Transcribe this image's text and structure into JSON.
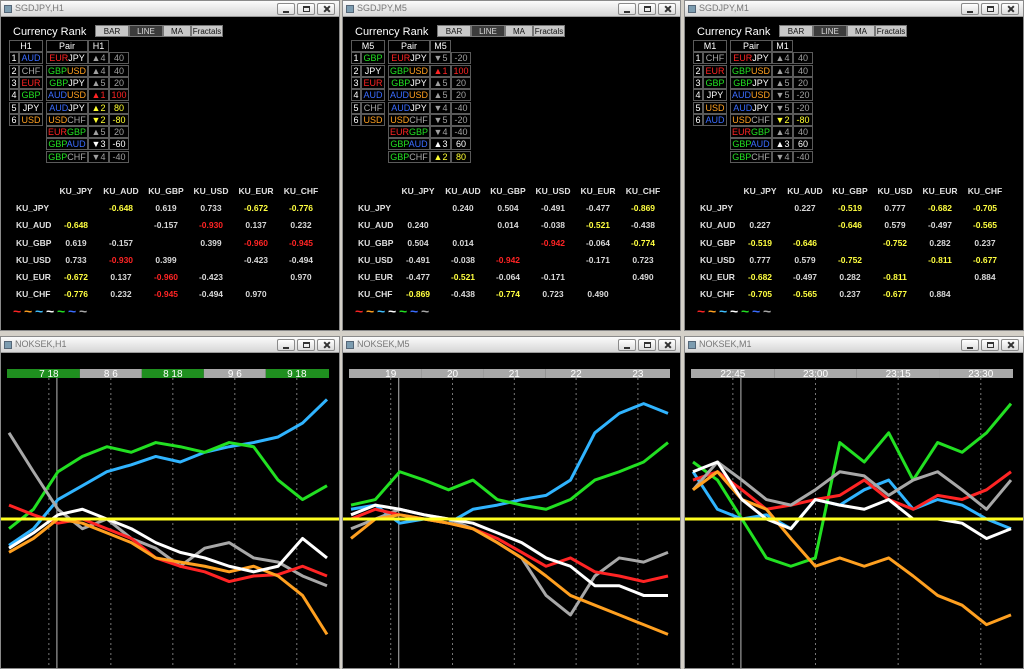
{
  "currency_colors": {
    "JPY": "#ffffff",
    "AUD": "#3a6cff",
    "GBP": "#22e022",
    "USD": "#ffa020",
    "EUR": "#ff2424",
    "CHF": "#a8a8a8"
  },
  "rank_colors": {
    "1": "#ff2424",
    "2": "#ffff30",
    "3": "#ffffff",
    "4": "#a0a0a0",
    "5": "#a0a0a0"
  },
  "matrix_colors": {
    "strong": "#ff2424",
    "medium": "#ffff40",
    "weak": "#d8d8d8"
  },
  "rank_windows": [
    {
      "title": "SGDJPY,H1",
      "heading": "Currency Rank",
      "buttons": [
        "BAR",
        "LINE",
        "MA",
        "Fractals"
      ],
      "active_button": 1,
      "header": [
        "H1",
        "Pair",
        "H1"
      ],
      "ranking": [
        {
          "n": "1",
          "cur": "AUD"
        },
        {
          "n": "2",
          "cur": "CHF"
        },
        {
          "n": "3",
          "cur": "EUR"
        },
        {
          "n": "4",
          "cur": "GBP"
        },
        {
          "n": "5",
          "cur": "JPY"
        },
        {
          "n": "6",
          "cur": "USD"
        }
      ],
      "pairs": [
        {
          "base": "EUR",
          "quote": "JPY",
          "rank": "▲4",
          "value": 40
        },
        {
          "base": "GBP",
          "quote": "USD",
          "rank": "▲4",
          "value": 40
        },
        {
          "base": "GBP",
          "quote": "JPY",
          "rank": "▲5",
          "value": 20
        },
        {
          "base": "AUD",
          "quote": "USD",
          "rank": "▲1",
          "value": 100
        },
        {
          "base": "AUD",
          "quote": "JPY",
          "rank": "▲2",
          "value": 80
        },
        {
          "base": "USD",
          "quote": "CHF",
          "rank": "▼2",
          "value": -80
        },
        {
          "base": "EUR",
          "quote": "GBP",
          "rank": "▲5",
          "value": 20
        },
        {
          "base": "GBP",
          "quote": "AUD",
          "rank": "▼3",
          "value": -60
        },
        {
          "base": "GBP",
          "quote": "CHF",
          "rank": "▼4",
          "value": -40
        }
      ],
      "matrix": {
        "columns": [
          "KU_JPY",
          "KU_AUD",
          "KU_GBP",
          "KU_USD",
          "KU_EUR",
          "KU_CHF"
        ],
        "rows": [
          {
            "label": "KU_JPY",
            "cells": [
              null,
              "-0.648",
              "0.619",
              "0.733",
              "-0.672",
              "-0.776"
            ]
          },
          {
            "label": "KU_AUD",
            "cells": [
              "-0.648",
              null,
              "-0.157",
              "-0.930",
              "0.137",
              "0.232"
            ]
          },
          {
            "label": "KU_GBP",
            "cells": [
              "0.619",
              "-0.157",
              null,
              "0.399",
              "-0.960",
              "-0.945"
            ]
          },
          {
            "label": "KU_USD",
            "cells": [
              "0.733",
              "-0.930",
              "0.399",
              null,
              "-0.423",
              "-0.494"
            ]
          },
          {
            "label": "KU_EUR",
            "cells": [
              "-0.672",
              "0.137",
              "-0.960",
              "-0.423",
              null,
              "0.970"
            ]
          },
          {
            "label": "KU_CHF",
            "cells": [
              "-0.776",
              "0.232",
              "-0.945",
              "-0.494",
              "0.970",
              null
            ]
          }
        ]
      },
      "legend": {
        "symbols": [
          "~",
          "~",
          "~",
          "~",
          "~",
          "~",
          "~"
        ],
        "colors": [
          "#ff2424",
          "#ffa020",
          "#40c0ff",
          "#ffffff",
          "#22e022",
          "#3a6cff",
          "#a8a8a8"
        ]
      }
    },
    {
      "title": "SGDJPY,M5",
      "heading": "Currency Rank",
      "buttons": [
        "BAR",
        "LINE",
        "MA",
        "Fractals"
      ],
      "active_button": 1,
      "header": [
        "M5",
        "Pair",
        "M5"
      ],
      "ranking": [
        {
          "n": "1",
          "cur": "GBP"
        },
        {
          "n": "2",
          "cur": "JPY"
        },
        {
          "n": "3",
          "cur": "EUR"
        },
        {
          "n": "4",
          "cur": "AUD"
        },
        {
          "n": "5",
          "cur": "CHF"
        },
        {
          "n": "6",
          "cur": "USD"
        }
      ],
      "pairs": [
        {
          "base": "EUR",
          "quote": "JPY",
          "rank": "▼5",
          "value": -20
        },
        {
          "base": "GBP",
          "quote": "USD",
          "rank": "▲1",
          "value": 100
        },
        {
          "base": "GBP",
          "quote": "JPY",
          "rank": "▲5",
          "value": 20
        },
        {
          "base": "AUD",
          "quote": "USD",
          "rank": "▲5",
          "value": 20
        },
        {
          "base": "AUD",
          "quote": "JPY",
          "rank": "▼4",
          "value": -40
        },
        {
          "base": "USD",
          "quote": "CHF",
          "rank": "▼5",
          "value": -20
        },
        {
          "base": "EUR",
          "quote": "GBP",
          "rank": "▼4",
          "value": -40
        },
        {
          "base": "GBP",
          "quote": "AUD",
          "rank": "▲3",
          "value": 60
        },
        {
          "base": "GBP",
          "quote": "CHF",
          "rank": "▲2",
          "value": 80
        }
      ],
      "matrix": {
        "columns": [
          "KU_JPY",
          "KU_AUD",
          "KU_GBP",
          "KU_USD",
          "KU_EUR",
          "KU_CHF"
        ],
        "rows": [
          {
            "label": "KU_JPY",
            "cells": [
              null,
              "0.240",
              "0.504",
              "-0.491",
              "-0.477",
              "-0.869"
            ]
          },
          {
            "label": "KU_AUD",
            "cells": [
              "0.240",
              null,
              "0.014",
              "-0.038",
              "-0.521",
              "-0.438"
            ]
          },
          {
            "label": "KU_GBP",
            "cells": [
              "0.504",
              "0.014",
              null,
              "-0.942",
              "-0.064",
              "-0.774"
            ]
          },
          {
            "label": "KU_USD",
            "cells": [
              "-0.491",
              "-0.038",
              "-0.942",
              null,
              "-0.171",
              "0.723"
            ]
          },
          {
            "label": "KU_EUR",
            "cells": [
              "-0.477",
              "-0.521",
              "-0.064",
              "-0.171",
              null,
              "0.490"
            ]
          },
          {
            "label": "KU_CHF",
            "cells": [
              "-0.869",
              "-0.438",
              "-0.774",
              "0.723",
              "0.490",
              null
            ]
          }
        ]
      },
      "legend": {
        "symbols": [
          "~",
          "~",
          "~",
          "~",
          "~",
          "~",
          "~"
        ],
        "colors": [
          "#ff2424",
          "#ffa020",
          "#40c0ff",
          "#ffffff",
          "#22e022",
          "#3a6cff",
          "#a8a8a8"
        ]
      }
    },
    {
      "title": "SGDJPY,M1",
      "heading": "Currency Rank",
      "buttons": [
        "BAR",
        "LINE",
        "MA",
        "Fractals"
      ],
      "active_button": 1,
      "header": [
        "M1",
        "Pair",
        "M1"
      ],
      "ranking": [
        {
          "n": "1",
          "cur": "CHF"
        },
        {
          "n": "2",
          "cur": "EUR"
        },
        {
          "n": "3",
          "cur": "GBP"
        },
        {
          "n": "4",
          "cur": "JPY"
        },
        {
          "n": "5",
          "cur": "USD"
        },
        {
          "n": "6",
          "cur": "AUD"
        }
      ],
      "pairs": [
        {
          "base": "EUR",
          "quote": "JPY",
          "rank": "▲4",
          "value": 40
        },
        {
          "base": "GBP",
          "quote": "USD",
          "rank": "▲4",
          "value": 40
        },
        {
          "base": "GBP",
          "quote": "JPY",
          "rank": "▲5",
          "value": 20
        },
        {
          "base": "AUD",
          "quote": "USD",
          "rank": "▼5",
          "value": -20
        },
        {
          "base": "AUD",
          "quote": "JPY",
          "rank": "▼5",
          "value": -20
        },
        {
          "base": "USD",
          "quote": "CHF",
          "rank": "▼2",
          "value": -80
        },
        {
          "base": "EUR",
          "quote": "GBP",
          "rank": "▲4",
          "value": 40
        },
        {
          "base": "GBP",
          "quote": "AUD",
          "rank": "▲3",
          "value": 60
        },
        {
          "base": "GBP",
          "quote": "CHF",
          "rank": "▼4",
          "value": -40
        }
      ],
      "matrix": {
        "columns": [
          "KU_JPY",
          "KU_AUD",
          "KU_GBP",
          "KU_USD",
          "KU_EUR",
          "KU_CHF"
        ],
        "rows": [
          {
            "label": "KU_JPY",
            "cells": [
              null,
              "0.227",
              "-0.519",
              "0.777",
              "-0.682",
              "-0.705"
            ]
          },
          {
            "label": "KU_AUD",
            "cells": [
              "0.227",
              null,
              "-0.646",
              "0.579",
              "-0.497",
              "-0.565"
            ]
          },
          {
            "label": "KU_GBP",
            "cells": [
              "-0.519",
              "-0.646",
              null,
              "-0.752",
              "0.282",
              "0.237"
            ]
          },
          {
            "label": "KU_USD",
            "cells": [
              "0.777",
              "0.579",
              "-0.752",
              null,
              "-0.811",
              "-0.677"
            ]
          },
          {
            "label": "KU_EUR",
            "cells": [
              "-0.682",
              "-0.497",
              "0.282",
              "-0.811",
              null,
              "0.884"
            ]
          },
          {
            "label": "KU_CHF",
            "cells": [
              "-0.705",
              "-0.565",
              "0.237",
              "-0.677",
              "0.884",
              null
            ]
          }
        ]
      },
      "legend": {
        "symbols": [
          "~",
          "~",
          "~",
          "~",
          "~",
          "~",
          "~"
        ],
        "colors": [
          "#ff2424",
          "#ffa020",
          "#40c0ff",
          "#ffffff",
          "#22e022",
          "#3a6cff",
          "#a8a8a8"
        ]
      }
    }
  ],
  "chart_windows": [
    {
      "title": "NOKSEK,H1",
      "chart_data": {
        "type": "line",
        "time_labels": [
          "7 18",
          "8 6",
          "8 18",
          "9 6",
          "9 18"
        ],
        "time_bar_colors": [
          "#1f8f1f",
          "#a8a8a8"
        ],
        "ylim": [
          -1,
          1
        ],
        "zero_line_color": "#ffff20",
        "series": [
          {
            "color": "#30b4ff",
            "values": [
              -0.19,
              -0.07,
              0.14,
              0.24,
              0.34,
              0.39,
              0.45,
              0.41,
              0.48,
              0.52,
              0.55,
              0.59,
              0.69,
              0.86
            ]
          },
          {
            "color": "#22e022",
            "values": [
              -0.07,
              0.07,
              0.34,
              0.45,
              0.52,
              0.48,
              0.55,
              0.52,
              0.48,
              0.55,
              0.52,
              0.28,
              0.14,
              0.24
            ]
          },
          {
            "color": "#a8a8a8",
            "values": [
              0.62,
              0.34,
              0.07,
              -0.07,
              0,
              -0.14,
              -0.21,
              -0.34,
              -0.21,
              -0.17,
              -0.28,
              -0.31,
              -0.41,
              -0.48
            ]
          },
          {
            "color": "#ff2424",
            "values": [
              0.1,
              0.03,
              -0.03,
              0,
              -0.07,
              -0.14,
              -0.28,
              -0.34,
              -0.38,
              -0.45,
              -0.41,
              -0.4,
              -0.34,
              -0.41
            ]
          },
          {
            "color": "#ffa020",
            "values": [
              -0.24,
              -0.14,
              0,
              -0.03,
              -0.1,
              -0.17,
              -0.28,
              -0.31,
              -0.34,
              -0.38,
              -0.34,
              -0.41,
              -0.55,
              -0.83
            ]
          },
          {
            "color": "#ffffff",
            "values": [
              -0.21,
              -0.1,
              0.03,
              0.07,
              0,
              -0.07,
              -0.17,
              -0.24,
              -0.28,
              -0.34,
              -0.38,
              -0.34,
              -0.14,
              -0.28
            ]
          }
        ]
      }
    },
    {
      "title": "NOKSEK,M5",
      "chart_data": {
        "type": "line",
        "time_labels": [
          "19",
          "20",
          "21",
          "22",
          "23"
        ],
        "time_bar_colors": [
          "#a8a8a8"
        ],
        "ylim": [
          -1,
          1
        ],
        "zero_line_color": "#ffff20",
        "series": [
          {
            "color": "#30b4ff",
            "values": [
              0.07,
              0.1,
              -0.03,
              0,
              -0.03,
              0.07,
              0.1,
              0.14,
              0.17,
              0.28,
              0.62,
              0.76,
              0.83,
              0.76
            ]
          },
          {
            "color": "#22e022",
            "values": [
              0.1,
              0.14,
              0.34,
              0.28,
              0.21,
              0.28,
              0.14,
              0.1,
              0.07,
              0.14,
              0.28,
              0.34,
              0.41,
              0.55
            ]
          },
          {
            "color": "#a8a8a8",
            "values": [
              -0.07,
              0,
              0.07,
              0.03,
              0,
              -0.07,
              -0.17,
              -0.28,
              -0.55,
              -0.69,
              -0.41,
              -0.28,
              -0.31,
              -0.24
            ]
          },
          {
            "color": "#ff2424",
            "values": [
              0,
              0.07,
              0.03,
              0,
              -0.03,
              -0.07,
              -0.14,
              -0.24,
              -0.34,
              -0.28,
              -0.38,
              -0.41,
              -0.45,
              -0.41
            ]
          },
          {
            "color": "#ffa020",
            "values": [
              -0.14,
              0,
              0.03,
              0,
              -0.03,
              -0.07,
              -0.17,
              -0.28,
              -0.41,
              -0.55,
              -0.62,
              -0.69,
              -0.76,
              -0.83
            ]
          },
          {
            "color": "#ffffff",
            "values": [
              0.03,
              0.1,
              0.07,
              0.03,
              0,
              -0.03,
              -0.1,
              -0.17,
              -0.28,
              -0.34,
              -0.48,
              -0.48,
              -0.55,
              -0.55
            ]
          }
        ]
      }
    },
    {
      "title": "NOKSEK,M1",
      "chart_data": {
        "type": "line",
        "time_labels": [
          "22:45",
          "23:00",
          "23:15",
          "23:30"
        ],
        "time_bar_colors": [
          "#a8a8a8"
        ],
        "ylim": [
          -1,
          1
        ],
        "zero_line_color": "#ffff20",
        "series": [
          {
            "color": "#22e022",
            "values": [
              0.41,
              0.28,
              0,
              -0.28,
              -0.34,
              -0.28,
              0.55,
              0.41,
              0.62,
              0.28,
              0.55,
              0.48,
              0.62,
              0.83
            ]
          },
          {
            "color": "#30b4ff",
            "values": [
              0.34,
              0.07,
              0,
              0.03,
              -0.07,
              0.14,
              0.1,
              0.21,
              0.28,
              0.07,
              0.14,
              0.1,
              0,
              -0.07
            ]
          },
          {
            "color": "#ff2424",
            "values": [
              0.28,
              0.34,
              0.21,
              0.07,
              0.1,
              0.14,
              0.17,
              0.28,
              0.14,
              0.07,
              0.17,
              0.14,
              0.21,
              0.34
            ]
          },
          {
            "color": "#a8a8a8",
            "values": [
              0.21,
              0.41,
              0.28,
              0.14,
              0.1,
              0.21,
              0.34,
              0.31,
              0.17,
              0.28,
              0.34,
              0.21,
              0.07,
              0.28
            ]
          },
          {
            "color": "#ffa020",
            "values": [
              0.21,
              0.34,
              0.14,
              0.07,
              -0.14,
              -0.34,
              -0.28,
              -0.34,
              -0.28,
              -0.41,
              -0.55,
              -0.62,
              -0.76,
              -0.69
            ]
          },
          {
            "color": "#ffffff",
            "values": [
              0.34,
              0.41,
              0.14,
              0,
              -0.07,
              0.14,
              0.1,
              0.07,
              0.14,
              0,
              0,
              -0.03,
              -0.14,
              -0.07
            ]
          }
        ]
      }
    }
  ]
}
